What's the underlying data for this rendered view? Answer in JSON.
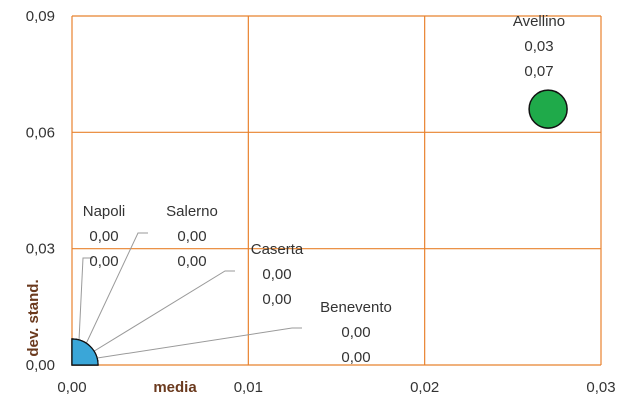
{
  "chart_data": {
    "type": "scatter",
    "xlabel": "media",
    "ylabel": "dev. stand.",
    "xlim": [
      0,
      0.03
    ],
    "ylim": [
      0,
      0.09
    ],
    "x_ticks": [
      {
        "value": 0,
        "label": "0,00"
      },
      {
        "value": 0.01,
        "label": "0,01"
      },
      {
        "value": 0.02,
        "label": "0,02"
      },
      {
        "value": 0.03,
        "label": "0,03"
      }
    ],
    "y_ticks": [
      {
        "value": 0,
        "label": "0,00"
      },
      {
        "value": 0.03,
        "label": "0,03"
      },
      {
        "value": 0.06,
        "label": "0,06"
      },
      {
        "value": 0.09,
        "label": "0,09"
      }
    ],
    "grid": true,
    "grid_color": "#e8822e",
    "points": [
      {
        "name": "Avellino",
        "x": 0.027,
        "y": 0.066,
        "x_label": "0,03",
        "y_label": "0,07",
        "color": "#1faa4a"
      },
      {
        "name": "Napoli",
        "x": 0.0,
        "y": 0.0,
        "x_label": "0,00",
        "y_label": "0,00",
        "color": "#3aa6d8"
      },
      {
        "name": "Salerno",
        "x": 0.0,
        "y": 0.0,
        "x_label": "0,00",
        "y_label": "0,00",
        "color": "#3aa6d8"
      },
      {
        "name": "Caserta",
        "x": 0.0,
        "y": 0.0,
        "x_label": "0,00",
        "y_label": "0,00",
        "color": "#3aa6d8"
      },
      {
        "name": "Benevento",
        "x": 0.0,
        "y": 0.0,
        "x_label": "0,00",
        "y_label": "0,00",
        "color": "#3aa6d8"
      }
    ]
  }
}
